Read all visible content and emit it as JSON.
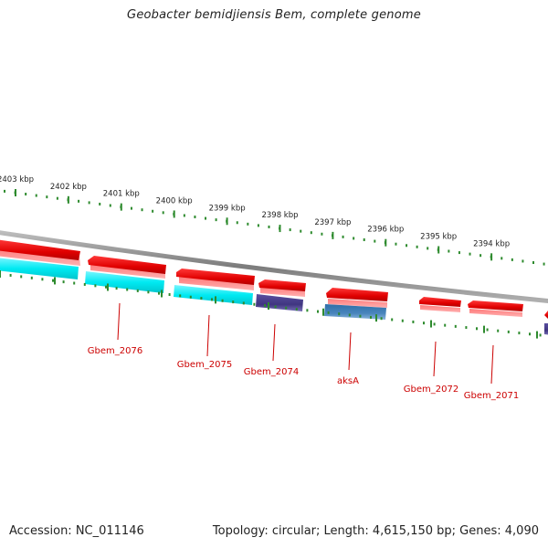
{
  "title": "Geobacter bemidjiensis Bem, complete genome",
  "footer": {
    "accession": "Accession: NC_011146",
    "topology": "Topology: circular; Length: 4,615,150 bp; Genes: 4,090"
  },
  "ruler": {
    "ticks": [
      {
        "kbp": 2403,
        "label": "2403 kbp"
      },
      {
        "kbp": 2402,
        "label": "2402 kbp"
      },
      {
        "kbp": 2401,
        "label": "2401 kbp"
      },
      {
        "kbp": 2400,
        "label": "2400 kbp"
      },
      {
        "kbp": 2399,
        "label": "2399 kbp"
      },
      {
        "kbp": 2398,
        "label": "2398 kbp"
      },
      {
        "kbp": 2397,
        "label": "2397 kbp"
      },
      {
        "kbp": 2396,
        "label": "2396 kbp"
      },
      {
        "kbp": 2395,
        "label": "2395 kbp"
      },
      {
        "kbp": 2394,
        "label": "2394 kbp"
      }
    ]
  },
  "colors": {
    "backbone": "#8a8a8a",
    "tick": "#2e8b2e",
    "gene_red": "#ee1111",
    "gene_cyan": "#00e5ee",
    "gene_navy": "#4a3f8c",
    "gene_steel": "#4a82b4",
    "label": "#cc0000"
  },
  "genes": [
    {
      "name": "Gbem_2076",
      "label": "Gbem_2076",
      "start_kbp": 2401.75,
      "end_kbp": 2400.45,
      "color": "cyan"
    },
    {
      "name": "Gbem_2075",
      "label": "Gbem_2075",
      "start_kbp": 2400.3,
      "end_kbp": 2398.83,
      "color": "cyan"
    },
    {
      "name": "Gbem_2074",
      "label": "Gbem_2074",
      "start_kbp": 2398.75,
      "end_kbp": 2397.87,
      "color": "navy"
    },
    {
      "name": "aksA",
      "label": "aksA",
      "start_kbp": 2397.55,
      "end_kbp": 2396.45,
      "color": "steel"
    },
    {
      "name": "Gbem_2072",
      "label": "Gbem_2072",
      "start_kbp": 2395.22,
      "end_kbp": 2394.46,
      "color": "red"
    },
    {
      "name": "Gbem_2071",
      "label": "Gbem_2071",
      "start_kbp": 2394.29,
      "end_kbp": 2393.29,
      "color": "red"
    }
  ]
}
